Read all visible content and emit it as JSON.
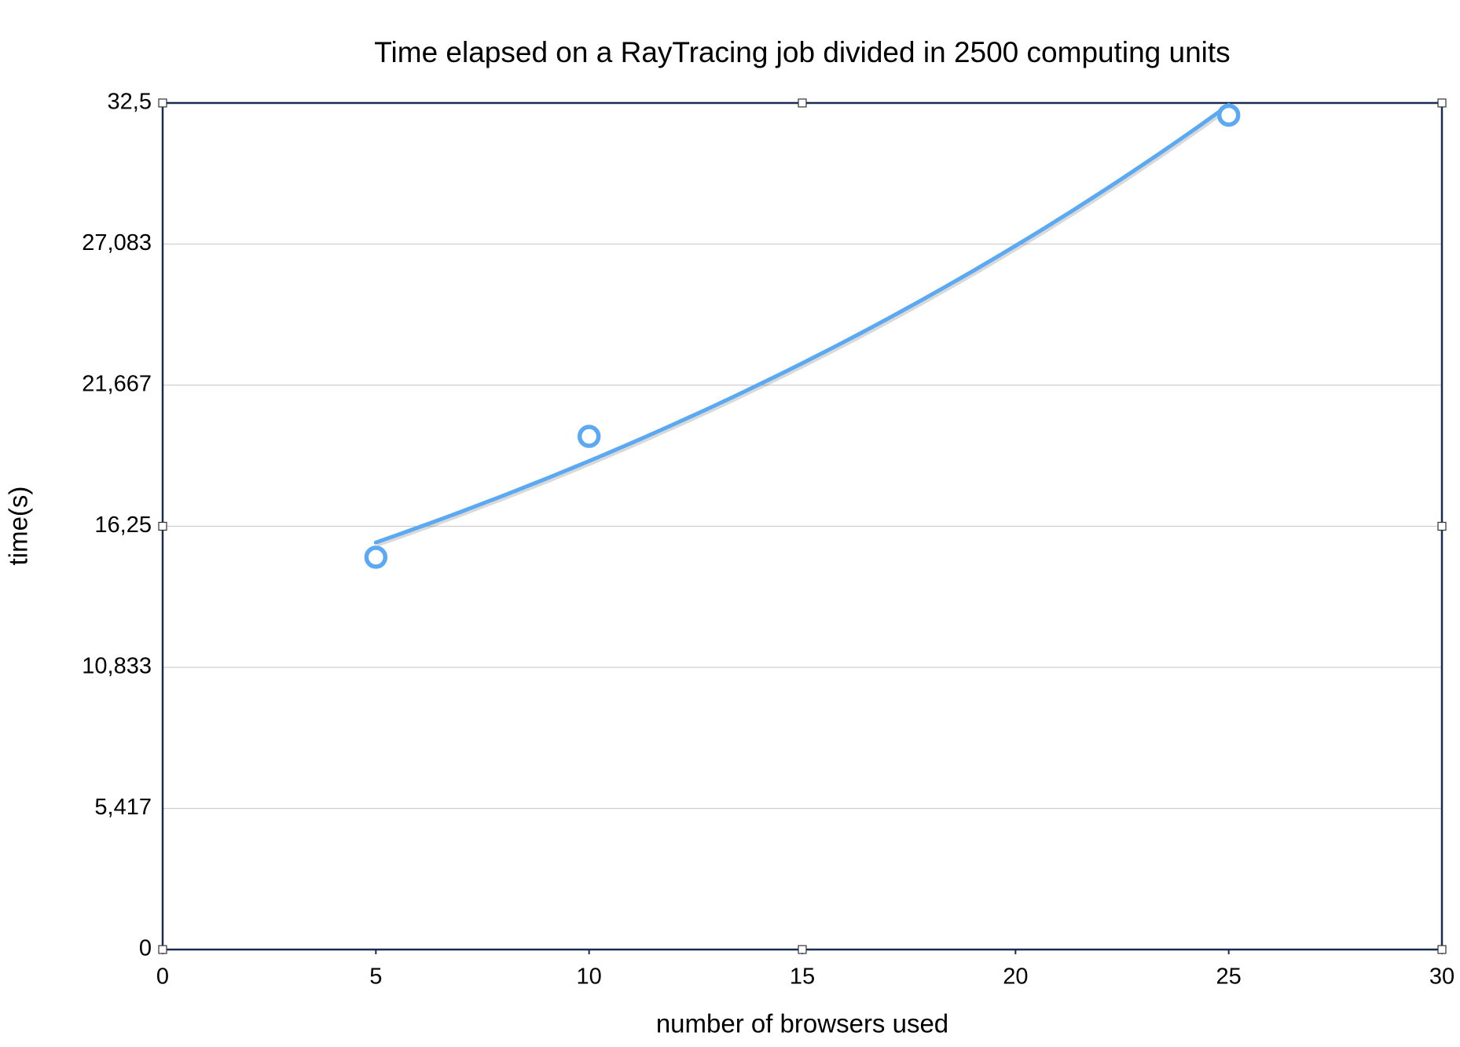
{
  "chart_data": {
    "type": "scatter",
    "title": "Time elapsed on a RayTracing job divided in 2500 computing units",
    "x_label": "number of browsers used",
    "y_label": "time(s)",
    "x": [
      5,
      10,
      25
    ],
    "series": [
      {
        "color": "#5aa9f2",
        "values": [
          15.06,
          19.7,
          32.03
        ]
      }
    ],
    "trendline": "exponential",
    "xlim": [
      0,
      30
    ],
    "xticks": [
      0,
      5,
      10,
      15,
      20,
      25,
      30
    ],
    "ylim": [
      0,
      32.5
    ],
    "yticks": [
      0,
      {
        "value": 5.417,
        "label": "5,417"
      },
      {
        "value": 10.833,
        "label": "10,833"
      },
      {
        "value": 16.25,
        "label": "16,25"
      },
      {
        "value": 21.667,
        "label": "21,667"
      },
      {
        "value": 27.083,
        "label": "27,083"
      },
      {
        "value": 32.5,
        "label": "32,5"
      }
    ],
    "grid": true
  }
}
